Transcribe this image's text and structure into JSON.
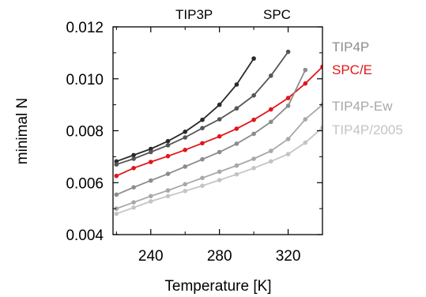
{
  "chart_data": {
    "type": "line",
    "xlabel": "Temperature [K]",
    "ylabel": "minimal N",
    "xlim": [
      218,
      340
    ],
    "ylim": [
      0.004,
      0.012
    ],
    "x_ticks": [
      240,
      280,
      320
    ],
    "x_tick_labels": [
      "240",
      "280",
      "320"
    ],
    "y_ticks": [
      0.004,
      0.006,
      0.008,
      0.01,
      0.012
    ],
    "y_tick_labels": [
      "0.004",
      "0.006",
      "0.008",
      "0.010",
      "0.012"
    ],
    "grid": false,
    "series": [
      {
        "name": "TIP3P",
        "color": "#2a2a2a",
        "x": [
          220,
          230,
          240,
          250,
          260,
          270,
          280,
          290,
          300
        ],
        "y": [
          0.00682,
          0.00706,
          0.0073,
          0.0076,
          0.00796,
          0.00842,
          0.009,
          0.00978,
          0.01078
        ]
      },
      {
        "name": "SPC",
        "color": "#555555",
        "x": [
          220,
          230,
          240,
          250,
          260,
          270,
          280,
          290,
          300,
          310,
          320
        ],
        "y": [
          0.0067,
          0.00692,
          0.00718,
          0.00744,
          0.00774,
          0.0081,
          0.00844,
          0.00886,
          0.00936,
          0.01012,
          0.01104
        ]
      },
      {
        "name": "SPC/E",
        "color": "#e0161b",
        "x": [
          220,
          230,
          240,
          250,
          260,
          270,
          280,
          290,
          300,
          310,
          320,
          330,
          340
        ],
        "y": [
          0.00626,
          0.00656,
          0.0068,
          0.00702,
          0.00726,
          0.00752,
          0.00778,
          0.00808,
          0.00842,
          0.00882,
          0.00926,
          0.00982,
          0.01046
        ]
      },
      {
        "name": "TIP4P",
        "color": "#8c8c8c",
        "x": [
          220,
          230,
          240,
          250,
          260,
          270,
          280,
          290,
          300,
          310,
          320,
          330
        ],
        "y": [
          0.00554,
          0.00582,
          0.00608,
          0.00634,
          0.00662,
          0.0069,
          0.00718,
          0.0075,
          0.00788,
          0.00834,
          0.00896,
          0.01034
        ]
      },
      {
        "name": "TIP4P-Ew",
        "color": "#a8a8a8",
        "x": [
          220,
          230,
          240,
          250,
          260,
          270,
          280,
          290,
          300,
          310,
          320,
          330,
          340
        ],
        "y": [
          0.005,
          0.00524,
          0.00548,
          0.0057,
          0.00594,
          0.00618,
          0.00642,
          0.00666,
          0.00692,
          0.00722,
          0.00768,
          0.00844,
          0.009
        ]
      },
      {
        "name": "TIP4P/2005",
        "color": "#c4c4c4",
        "x": [
          220,
          230,
          240,
          250,
          260,
          270,
          280,
          290,
          300,
          310,
          320,
          330,
          340
        ],
        "y": [
          0.0048,
          0.00504,
          0.00528,
          0.00548,
          0.00568,
          0.00588,
          0.0061,
          0.00632,
          0.00656,
          0.00682,
          0.0071,
          0.00754,
          0.00812
        ]
      }
    ],
    "series_labels": {
      "TIP3P": "TIP3P",
      "SPC": "SPC",
      "TIP4P": "TIP4P",
      "SPC/E": "SPC/E",
      "TIP4P-Ew": "TIP4P-Ew",
      "TIP4P/2005": "TIP4P/2005"
    }
  }
}
